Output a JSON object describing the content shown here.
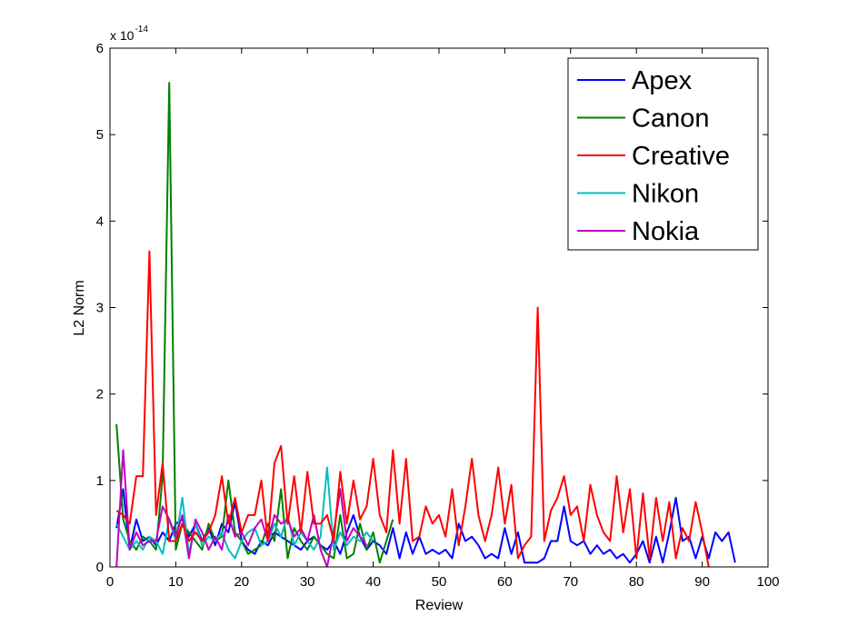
{
  "chart_data": {
    "type": "line",
    "xlabel": "Review",
    "ylabel": "L2 Norm",
    "y_multiplier_base": "x 10",
    "y_multiplier_exponent": "-14",
    "xlim": [
      0,
      100
    ],
    "ylim": [
      0,
      6
    ],
    "x_ticks": [
      "0",
      "10",
      "20",
      "30",
      "40",
      "50",
      "60",
      "70",
      "80",
      "90",
      "100"
    ],
    "y_ticks": [
      "0",
      "1",
      "2",
      "3",
      "4",
      "5",
      "6"
    ],
    "grid": false,
    "legend_position": "top-right",
    "series": [
      {
        "name": "Apex",
        "color": "#0000ff",
        "x": [
          1,
          2,
          3,
          4,
          5,
          6,
          7,
          8,
          9,
          10,
          11,
          12,
          13,
          14,
          15,
          16,
          17,
          18,
          19,
          20,
          21,
          22,
          23,
          24,
          25,
          26,
          27,
          28,
          29,
          30,
          31,
          32,
          33,
          34,
          35,
          36,
          37,
          38,
          39,
          40,
          41,
          42,
          43,
          44,
          45,
          46,
          47,
          48,
          49,
          50,
          51,
          52,
          53,
          54,
          55,
          56,
          57,
          58,
          59,
          60,
          61,
          62,
          63,
          64,
          65,
          66,
          67,
          68,
          69,
          70,
          71,
          72,
          73,
          74,
          75,
          76,
          77,
          78,
          79,
          80,
          81,
          82,
          83,
          84,
          85,
          86,
          87,
          88,
          89,
          90,
          91,
          92,
          93,
          94,
          95
        ],
        "y": [
          0.45,
          0.9,
          0.2,
          0.55,
          0.3,
          0.35,
          0.25,
          0.4,
          0.3,
          0.5,
          0.55,
          0.35,
          0.5,
          0.3,
          0.45,
          0.25,
          0.5,
          0.4,
          0.75,
          0.3,
          0.2,
          0.15,
          0.3,
          0.25,
          0.4,
          0.35,
          0.3,
          0.25,
          0.2,
          0.3,
          0.35,
          0.25,
          0.2,
          0.3,
          0.15,
          0.4,
          0.6,
          0.35,
          0.2,
          0.3,
          0.25,
          0.15,
          0.45,
          0.1,
          0.4,
          0.15,
          0.35,
          0.15,
          0.2,
          0.15,
          0.2,
          0.1,
          0.5,
          0.3,
          0.35,
          0.25,
          0.1,
          0.15,
          0.1,
          0.45,
          0.15,
          0.4,
          0.05,
          0.05,
          0.05,
          0.1,
          0.3,
          0.3,
          0.7,
          0.3,
          0.25,
          0.3,
          0.15,
          0.25,
          0.15,
          0.2,
          0.1,
          0.15,
          0.05,
          0.15,
          0.3,
          0.05,
          0.35,
          0.05,
          0.4,
          0.8,
          0.3,
          0.35,
          0.1,
          0.35,
          0.1,
          0.4,
          0.3,
          0.4,
          0.05
        ]
      },
      {
        "name": "Canon",
        "color": "#008000",
        "x": [
          1,
          2,
          3,
          4,
          5,
          6,
          7,
          8,
          9,
          10,
          11,
          12,
          13,
          14,
          15,
          16,
          17,
          18,
          19,
          20,
          21,
          22,
          23,
          24,
          25,
          26,
          27,
          28,
          29,
          30,
          31,
          32,
          33,
          34,
          35,
          36,
          37,
          38,
          39,
          40,
          41,
          42,
          43
        ],
        "y": [
          1.65,
          0.55,
          0.3,
          0.2,
          0.35,
          0.3,
          0.2,
          1.05,
          5.6,
          0.2,
          0.5,
          0.4,
          0.3,
          0.2,
          0.5,
          0.3,
          0.35,
          1.0,
          0.4,
          0.3,
          0.15,
          0.2,
          0.25,
          0.5,
          0.3,
          0.9,
          0.1,
          0.45,
          0.3,
          0.2,
          0.35,
          0.25,
          0.15,
          0.1,
          0.6,
          0.1,
          0.15,
          0.5,
          0.2,
          0.4,
          0.05,
          0.3,
          0.55
        ]
      },
      {
        "name": "Creative",
        "color": "#ff0000",
        "x": [
          1,
          2,
          3,
          4,
          5,
          6,
          7,
          8,
          9,
          10,
          11,
          12,
          13,
          14,
          15,
          16,
          17,
          18,
          19,
          20,
          21,
          22,
          23,
          24,
          25,
          26,
          27,
          28,
          29,
          30,
          31,
          32,
          33,
          34,
          35,
          36,
          37,
          38,
          39,
          40,
          41,
          42,
          43,
          44,
          45,
          46,
          47,
          48,
          49,
          50,
          51,
          52,
          53,
          54,
          55,
          56,
          57,
          58,
          59,
          60,
          61,
          62,
          63,
          64,
          65,
          66,
          67,
          68,
          69,
          70,
          71,
          72,
          73,
          74,
          75,
          76,
          77,
          78,
          79,
          80,
          81,
          82,
          83,
          84,
          85,
          86,
          87,
          88,
          89,
          90,
          91
        ],
        "y": [
          0.65,
          0.6,
          0.5,
          1.05,
          1.05,
          3.65,
          0.6,
          1.2,
          0.3,
          0.3,
          0.5,
          0.3,
          0.4,
          0.3,
          0.4,
          0.6,
          1.05,
          0.5,
          0.8,
          0.4,
          0.6,
          0.6,
          1.0,
          0.3,
          1.2,
          1.4,
          0.5,
          1.05,
          0.4,
          1.1,
          0.5,
          0.5,
          0.6,
          0.3,
          1.1,
          0.5,
          1.0,
          0.55,
          0.7,
          1.25,
          0.6,
          0.4,
          1.35,
          0.5,
          1.25,
          0.3,
          0.35,
          0.7,
          0.5,
          0.6,
          0.35,
          0.9,
          0.25,
          0.7,
          1.25,
          0.6,
          0.3,
          0.6,
          1.15,
          0.5,
          0.95,
          0.1,
          0.25,
          0.35,
          3.0,
          0.3,
          0.65,
          0.8,
          1.05,
          0.6,
          0.7,
          0.3,
          0.95,
          0.6,
          0.4,
          0.3,
          1.05,
          0.4,
          0.9,
          0.1,
          0.85,
          0.1,
          0.8,
          0.3,
          0.75,
          0.1,
          0.45,
          0.3,
          0.75,
          0.4,
          0.0
        ]
      },
      {
        "name": "Nikon",
        "color": "#00bfbf",
        "x": [
          1,
          2,
          3,
          4,
          5,
          6,
          7,
          8,
          9,
          10,
          11,
          12,
          13,
          14,
          15,
          16,
          17,
          18,
          19,
          20,
          21,
          22,
          23,
          24,
          25,
          26,
          27,
          28,
          29,
          30,
          31,
          32,
          33,
          34,
          35,
          36,
          37,
          38,
          39,
          40
        ],
        "y": [
          0.5,
          0.35,
          0.2,
          0.3,
          0.2,
          0.35,
          0.3,
          0.15,
          0.55,
          0.3,
          0.8,
          0.15,
          0.5,
          0.25,
          0.35,
          0.3,
          0.4,
          0.2,
          0.1,
          0.3,
          0.4,
          0.45,
          0.25,
          0.3,
          0.5,
          0.35,
          0.6,
          0.25,
          0.4,
          0.3,
          0.2,
          0.35,
          1.15,
          0.2,
          0.4,
          0.25,
          0.35,
          0.3,
          0.4,
          0.3
        ]
      },
      {
        "name": "Nokia",
        "color": "#bf00bf",
        "x": [
          1,
          2,
          3,
          4,
          5,
          6,
          7,
          8,
          9,
          10,
          11,
          12,
          13,
          14,
          15,
          16,
          17,
          18,
          19,
          20,
          21,
          22,
          23,
          24,
          25,
          26,
          27,
          28,
          29,
          30,
          31,
          32,
          33,
          34,
          35,
          36,
          37,
          38,
          39
        ],
        "y": [
          0.0,
          1.35,
          0.2,
          0.4,
          0.25,
          0.3,
          0.3,
          0.7,
          0.55,
          0.35,
          0.6,
          0.1,
          0.55,
          0.4,
          0.2,
          0.35,
          0.2,
          0.6,
          0.35,
          0.4,
          0.25,
          0.45,
          0.55,
          0.3,
          0.6,
          0.5,
          0.55,
          0.35,
          0.45,
          0.3,
          0.6,
          0.2,
          0.0,
          0.4,
          0.9,
          0.3,
          0.45,
          0.35,
          0.25
        ]
      }
    ]
  }
}
